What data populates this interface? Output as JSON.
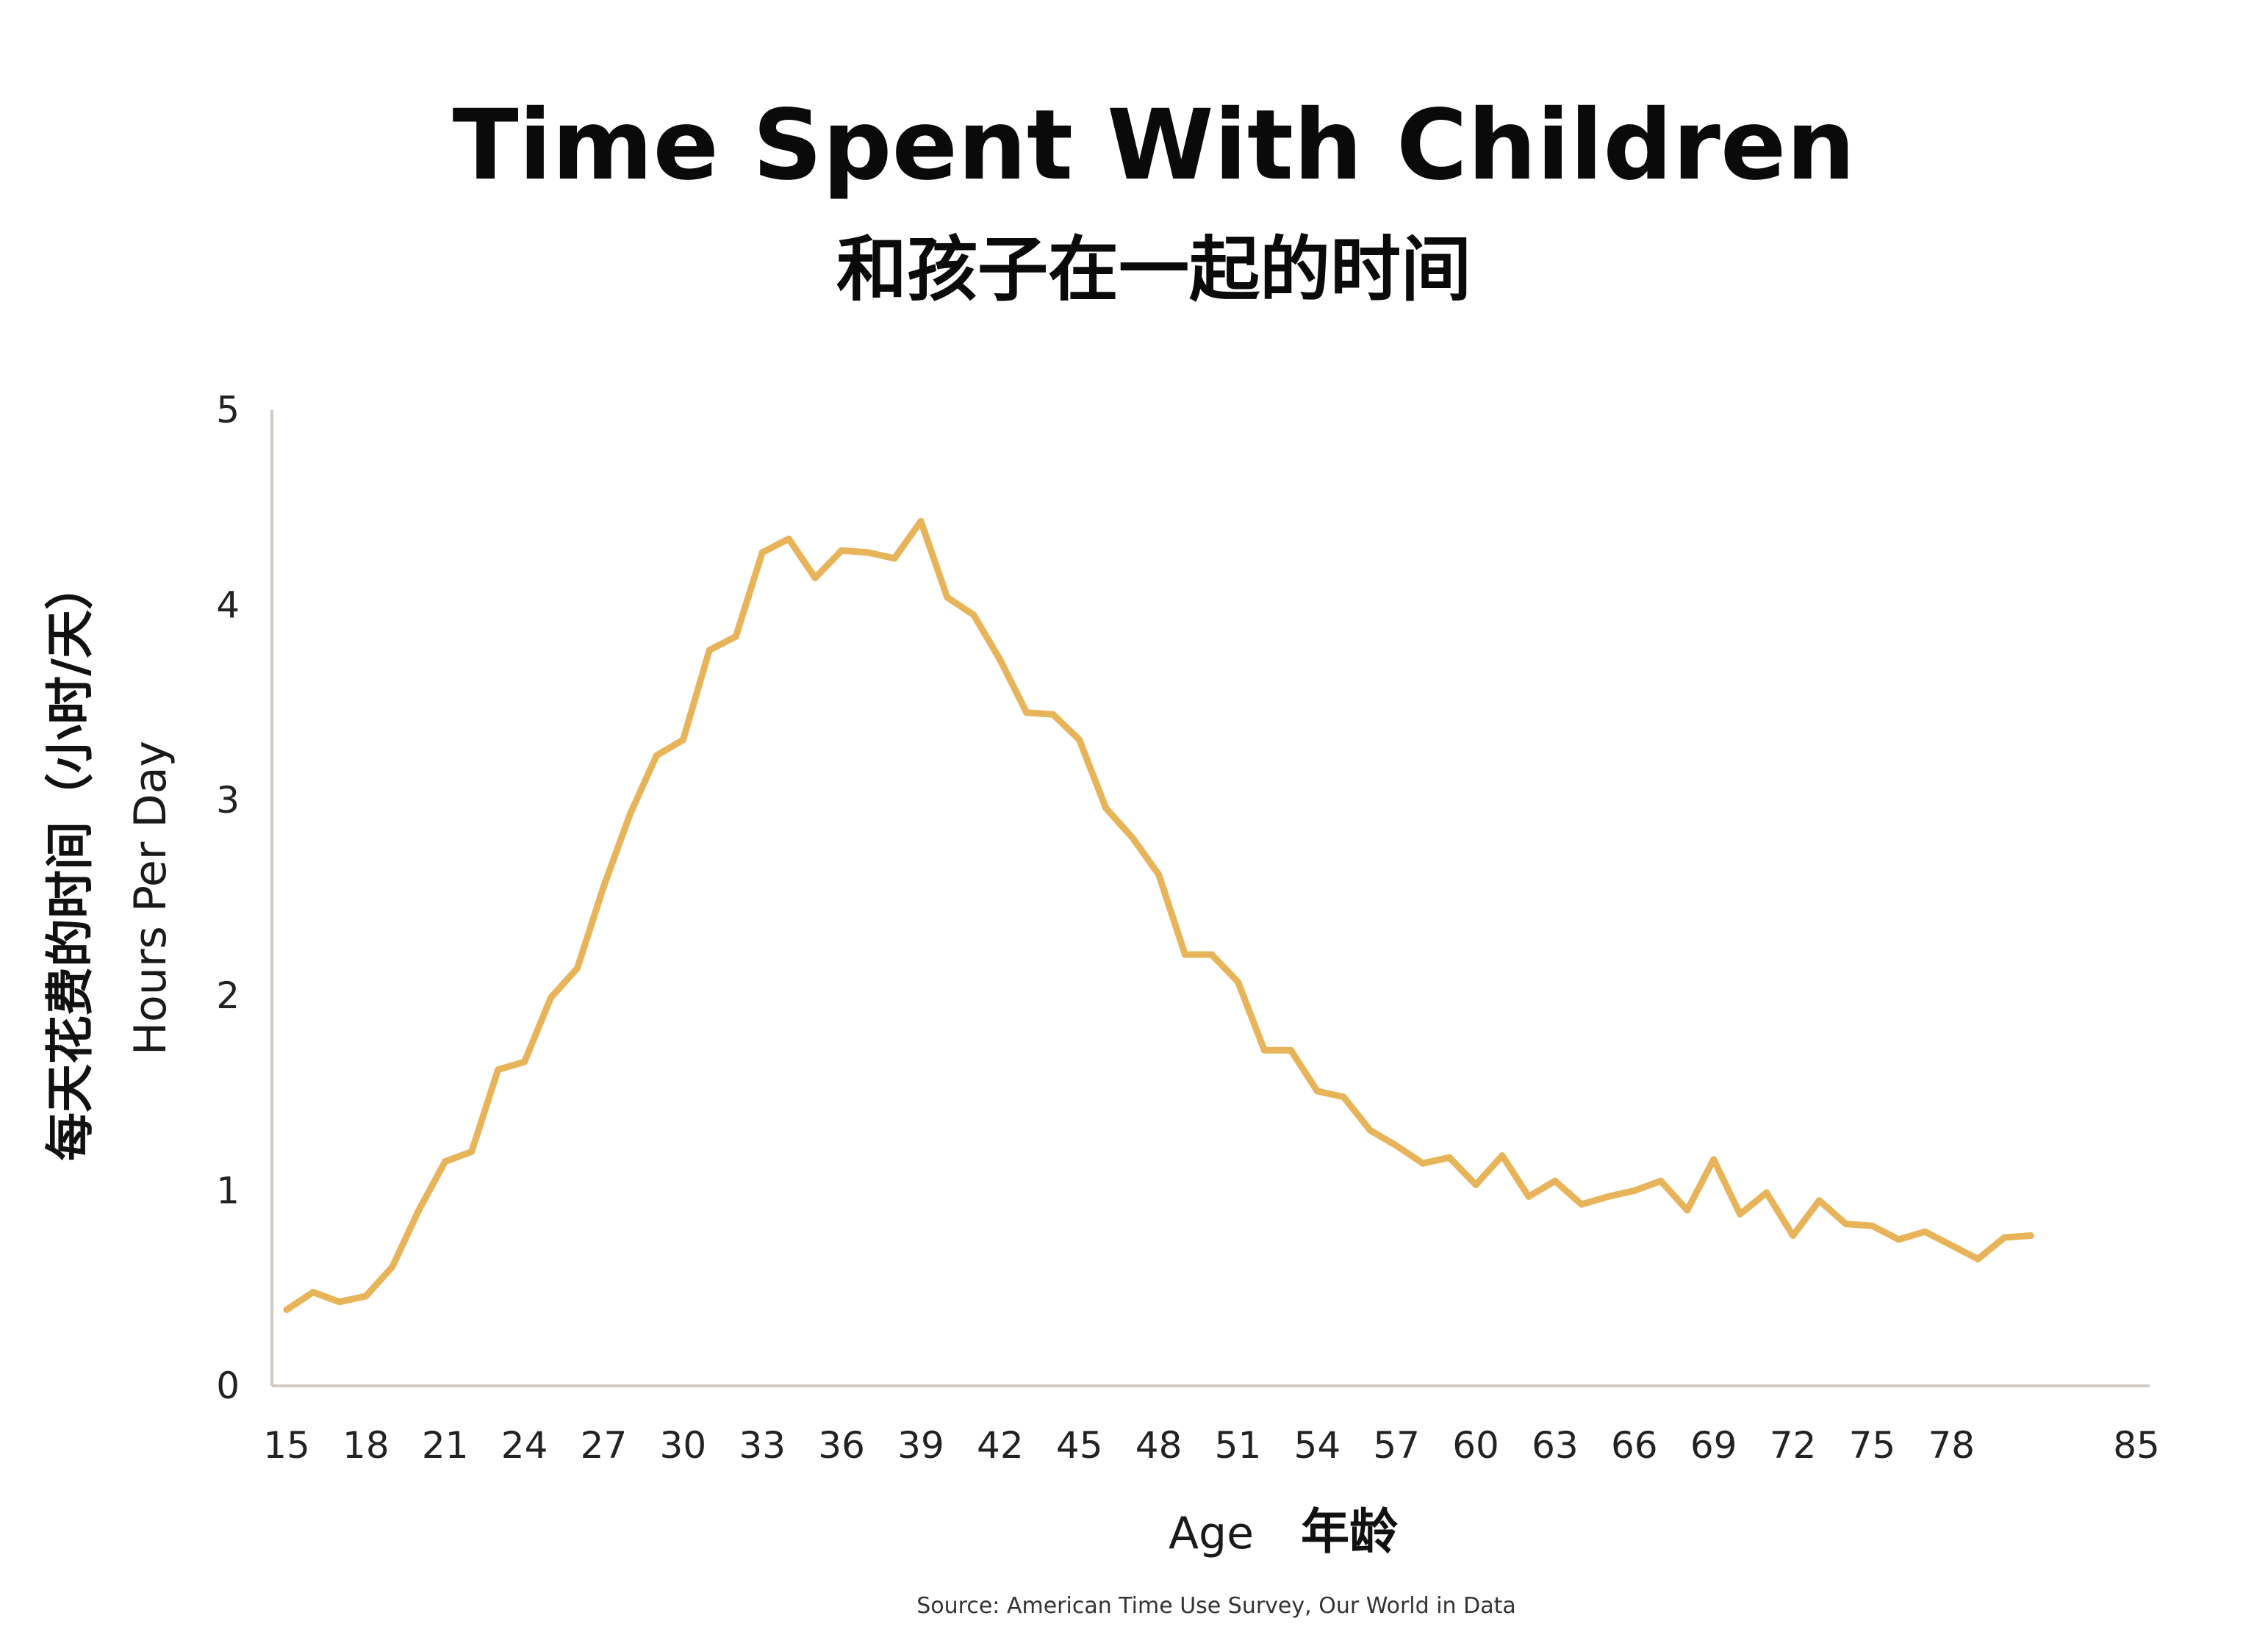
{
  "chart_data": {
    "type": "line",
    "title": "Time Spent With Children",
    "subtitle": "和孩子在一起的时间",
    "xlabel": "Age",
    "xlabel_zh": "年龄",
    "ylabel": "Hours Per Day",
    "ylabel_zh": "每天花费的时间（小时/天）",
    "source": "Source: American Time Use Survey, Our World in Data",
    "xlim": [
      15,
      85
    ],
    "ylim": [
      0,
      5
    ],
    "x_ticks": [
      15,
      18,
      21,
      24,
      27,
      30,
      33,
      36,
      39,
      42,
      45,
      48,
      51,
      54,
      57,
      60,
      63,
      66,
      69,
      72,
      75,
      78,
      85
    ],
    "y_ticks": [
      0,
      1,
      2,
      3,
      4,
      5
    ],
    "grid": false,
    "line_color": "#E8B45A",
    "x": [
      15,
      16,
      17,
      18,
      19,
      20,
      21,
      22,
      23,
      24,
      25,
      26,
      27,
      28,
      29,
      30,
      31,
      32,
      33,
      34,
      35,
      36,
      37,
      38,
      39,
      40,
      41,
      42,
      43,
      44,
      45,
      46,
      47,
      48,
      49,
      50,
      51,
      52,
      53,
      54,
      55,
      56,
      57,
      58,
      59,
      60,
      61,
      62,
      63,
      64,
      65,
      66,
      67,
      68,
      69,
      70,
      71,
      72,
      73,
      74,
      75,
      76,
      77,
      78,
      79,
      80,
      81
    ],
    "values": [
      0.39,
      0.48,
      0.43,
      0.46,
      0.61,
      0.9,
      1.15,
      1.2,
      1.62,
      1.66,
      1.99,
      2.14,
      2.56,
      2.93,
      3.23,
      3.31,
      3.77,
      3.84,
      4.27,
      4.34,
      4.14,
      4.28,
      4.27,
      4.24,
      4.43,
      4.04,
      3.95,
      3.72,
      3.45,
      3.44,
      3.31,
      2.96,
      2.81,
      2.62,
      2.21,
      2.21,
      2.07,
      1.72,
      1.72,
      1.51,
      1.48,
      1.31,
      1.23,
      1.14,
      1.17,
      1.03,
      1.18,
      0.97,
      1.05,
      0.93,
      0.97,
      1.0,
      1.05,
      0.9,
      1.16,
      0.88,
      0.99,
      0.77,
      0.95,
      0.83,
      0.82,
      0.75,
      0.79,
      0.72,
      0.65,
      0.76,
      0.77
    ]
  }
}
